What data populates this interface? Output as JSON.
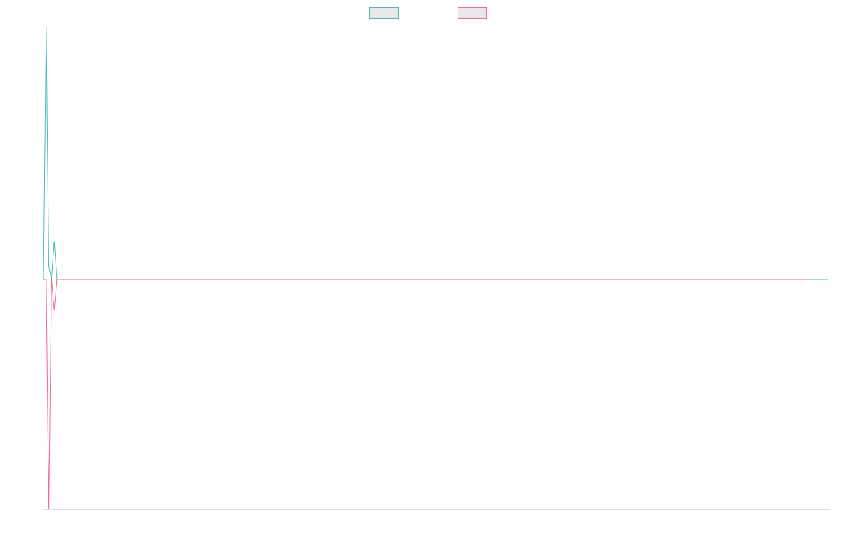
{
  "chart_data": {
    "type": "line",
    "title": "",
    "xlabel": "",
    "ylabel": "",
    "grid": false,
    "legend": "top-center",
    "series": [
      {
        "color": "#4bb8c0",
        "fill": "#e8e8e8",
        "values": [
          0,
          1,
          0.05,
          0,
          0.15,
          0,
          0,
          0,
          0,
          0,
          0,
          0,
          0,
          0,
          0,
          0,
          0,
          0,
          0,
          0,
          0,
          0,
          0,
          0,
          0,
          0,
          0,
          0,
          0,
          0,
          0,
          0,
          0,
          0,
          0,
          0,
          0,
          0,
          0,
          0,
          0,
          0,
          0,
          0,
          0,
          0,
          0,
          0,
          0,
          0,
          0,
          0,
          0,
          0,
          0,
          0,
          0,
          0,
          0,
          0,
          0,
          0,
          0,
          0,
          0,
          0,
          0,
          0,
          0,
          0,
          0,
          0,
          0,
          0,
          0,
          0,
          0,
          0,
          0,
          0,
          0,
          0,
          0,
          0,
          0,
          0,
          0,
          0,
          0,
          0,
          0,
          0,
          0,
          0,
          0,
          0,
          0,
          0,
          0,
          0,
          0,
          0,
          0,
          0,
          0,
          0,
          0,
          0,
          0,
          0,
          0,
          0,
          0,
          0,
          0,
          0,
          0,
          0,
          0,
          0,
          0,
          0,
          0,
          0,
          0,
          0,
          0,
          0,
          0,
          0,
          0,
          0,
          0,
          0,
          0,
          0,
          0,
          0,
          0,
          0,
          0,
          0,
          0,
          0,
          0,
          0,
          0,
          0,
          0,
          0,
          0,
          0,
          0,
          0,
          0,
          0,
          0,
          0,
          0,
          0,
          0,
          0,
          0,
          0,
          0,
          0,
          0,
          0,
          0,
          0,
          0,
          0,
          0,
          0,
          0,
          0,
          0,
          0,
          0,
          0,
          0,
          0,
          0,
          0,
          0,
          0,
          0,
          0,
          0,
          0,
          0,
          0,
          0,
          0,
          0,
          0,
          0,
          0,
          0,
          0,
          0,
          0,
          0,
          0,
          0,
          0,
          0,
          0,
          0,
          0,
          0,
          0,
          0,
          0,
          0,
          0,
          0,
          0,
          0,
          0,
          0,
          0,
          0,
          0,
          0,
          0,
          0,
          0,
          0,
          0,
          0,
          0,
          0,
          0,
          0,
          0,
          0,
          0,
          0,
          0,
          0,
          0,
          0,
          0,
          0,
          0,
          0,
          0,
          0,
          0,
          0,
          0,
          0,
          0,
          0,
          0,
          0,
          0,
          0,
          0,
          0,
          0,
          0,
          0,
          0,
          0,
          0,
          0,
          0,
          0,
          0,
          0,
          0,
          0,
          0,
          0,
          0,
          0,
          0,
          0,
          0,
          0,
          0,
          0,
          0,
          0,
          0,
          0,
          0,
          0,
          0,
          0
        ]
      },
      {
        "color": "#f06a8a",
        "fill": "#e8e8e8",
        "values": [
          0,
          0,
          -0.9,
          0,
          -0.12,
          0,
          0,
          0,
          0,
          0,
          0,
          0,
          0,
          0,
          0,
          0,
          0,
          0,
          0,
          0,
          0,
          0,
          0,
          0,
          0,
          0,
          0,
          0,
          0,
          0,
          0,
          0,
          0,
          0,
          0,
          0,
          0,
          0,
          0,
          0,
          0,
          0,
          0,
          0,
          0,
          0,
          0,
          0,
          0,
          0,
          0,
          0,
          0,
          0,
          0,
          0,
          0,
          0,
          0,
          0,
          0,
          0,
          0,
          0,
          0,
          0,
          0,
          0,
          0,
          0,
          0,
          0,
          0,
          0,
          0,
          0,
          0,
          0,
          0,
          0,
          0,
          0,
          0,
          0,
          0,
          0,
          0,
          0,
          0,
          0,
          0,
          0,
          0,
          0,
          0,
          0,
          0,
          0,
          0,
          0,
          0,
          0,
          0,
          0,
          0,
          0,
          0,
          0,
          0,
          0,
          0,
          0,
          0,
          0,
          0,
          0,
          0,
          0,
          0,
          0,
          0,
          0,
          0,
          0,
          0,
          0,
          0,
          0,
          0,
          0,
          0,
          0,
          0,
          0,
          0,
          0,
          0,
          0,
          0,
          0,
          0,
          0,
          0,
          0,
          0,
          0,
          0,
          0,
          0,
          0,
          0,
          0,
          0,
          0,
          0,
          0,
          0,
          0,
          0,
          0,
          0,
          0,
          0,
          0,
          0,
          0,
          0,
          0,
          0,
          0,
          0,
          0,
          0,
          0,
          0,
          0,
          0,
          0,
          0,
          0,
          0,
          0,
          0,
          0,
          0,
          0,
          0,
          0,
          0,
          0,
          0,
          0,
          0,
          0,
          0,
          0,
          0,
          0,
          0,
          0,
          0,
          0,
          0,
          0,
          0,
          0,
          0,
          0,
          0,
          0,
          0,
          0,
          0,
          0,
          0,
          0,
          0,
          0,
          0,
          0,
          0,
          0,
          0,
          0,
          0,
          0,
          0,
          0,
          0,
          0,
          0,
          0,
          0,
          0,
          0,
          0,
          0,
          0,
          0,
          0,
          0,
          0,
          0,
          0,
          0,
          0,
          0,
          0,
          0,
          0,
          0,
          0,
          0,
          0,
          0,
          0,
          0,
          0,
          0,
          0,
          0,
          0,
          0,
          0,
          0,
          0,
          0,
          0,
          0,
          0,
          0,
          0,
          0,
          0,
          0,
          0,
          0,
          0,
          0,
          0,
          0,
          0,
          0,
          0
        ]
      }
    ],
    "ylim": [
      -0.9,
      1
    ],
    "axis_color": "#dddddd"
  }
}
